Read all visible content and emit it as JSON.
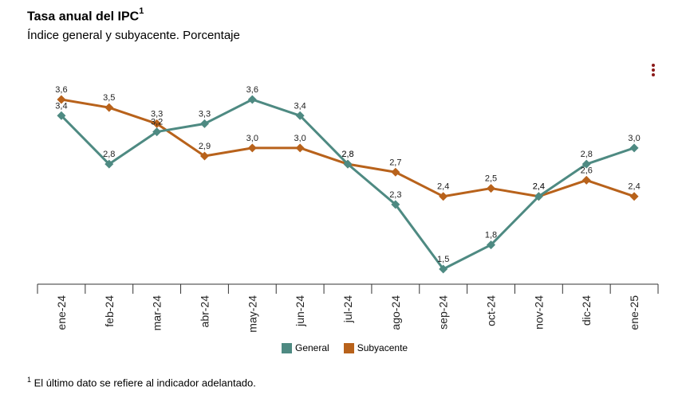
{
  "header": {
    "title": "Tasa anual del IPC",
    "title_note": "1",
    "subtitle": "Índice general y subyacente. Porcentaje"
  },
  "menu": {
    "icon": "vertical-dots-icon"
  },
  "chart_data": {
    "type": "line",
    "title": "Tasa anual del IPC",
    "subtitle": "Índice general y subyacente. Porcentaje",
    "categories": [
      "ene-24",
      "feb-24",
      "mar-24",
      "abr-24",
      "may-24",
      "jun-24",
      "jul-24",
      "ago-24",
      "sep-24",
      "oct-24",
      "nov-24",
      "dic-24",
      "ene-25"
    ],
    "series": [
      {
        "name": "General",
        "color": "#4e8a82",
        "values": [
          3.4,
          2.8,
          3.2,
          3.3,
          3.6,
          3.4,
          2.8,
          2.3,
          1.5,
          1.8,
          2.4,
          2.8,
          3.0
        ],
        "labels": [
          "3,4",
          "2,8",
          "3,2",
          "3,3",
          "3,6",
          "3,4",
          "2,8",
          "2,3",
          "1,5",
          "1,8",
          "2,4",
          "2,8",
          "3,0"
        ]
      },
      {
        "name": "Subyacente",
        "color": "#b8621b",
        "values": [
          3.6,
          3.5,
          3.3,
          2.9,
          3.0,
          3.0,
          2.8,
          2.7,
          2.4,
          2.5,
          2.4,
          2.6,
          2.4
        ],
        "labels": [
          "3,6",
          "3,5",
          "3,3",
          "2,9",
          "3,0",
          "3,0",
          "2,8",
          "2,7",
          "2,4",
          "2,5",
          "2,4",
          "2,6",
          "2,4"
        ]
      }
    ],
    "ylim": [
      1.3,
      3.9
    ],
    "grid": false,
    "legend": "bottom-center"
  },
  "legend": {
    "items": [
      {
        "label": "General",
        "color": "#4e8a82"
      },
      {
        "label": "Subyacente",
        "color": "#b8621b"
      }
    ]
  },
  "footnote": {
    "marker": "1",
    "text": "El último dato se refiere al indicador adelantado."
  }
}
